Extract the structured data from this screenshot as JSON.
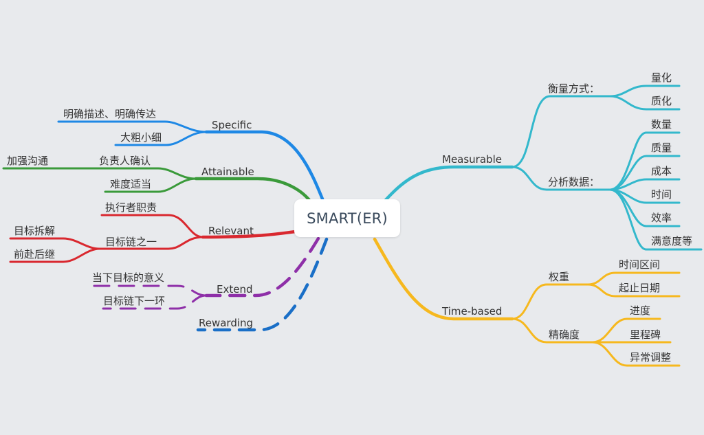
{
  "root": {
    "label": "SMART(ER)"
  },
  "colors": {
    "specific": "#1e88e5",
    "attainable": "#3a9a3a",
    "relevant": "#d9282f",
    "extend": "#8e2fa8",
    "rewarding": "#1a6fc7",
    "measurable": "#33b8cc",
    "time_based": "#f6b81e"
  },
  "branches": {
    "specific": {
      "label": "Specific",
      "children": [
        "明确描述、明确传达",
        "大粗小细"
      ]
    },
    "attainable": {
      "label": "Attainable",
      "children": [
        {
          "label": "负责人确认",
          "children": [
            "加强沟通"
          ]
        },
        {
          "label": "难度适当"
        }
      ]
    },
    "relevant": {
      "label": "Relevant",
      "children": [
        {
          "label": "执行者职责"
        },
        {
          "label": "目标链之一",
          "children": [
            "目标拆解",
            "前赴后继"
          ]
        }
      ]
    },
    "extend": {
      "label": "Extend",
      "children": [
        "当下目标的意义",
        "目标链下一环"
      ]
    },
    "rewarding": {
      "label": "Rewarding"
    },
    "measurable": {
      "label": "Measurable",
      "children": [
        {
          "label": "衡量方式：",
          "children": [
            "量化",
            "质化"
          ]
        },
        {
          "label": "分析数据：",
          "children": [
            "数量",
            "质量",
            "成本",
            "时间",
            "效率",
            "满意度等"
          ]
        }
      ]
    },
    "time_based": {
      "label": "Time-based",
      "children": [
        {
          "label": "权重",
          "children": [
            "时间区间",
            "起止日期"
          ]
        },
        {
          "label": "精确度",
          "children": [
            "进度",
            "里程碑",
            "异常调整"
          ]
        }
      ]
    }
  }
}
